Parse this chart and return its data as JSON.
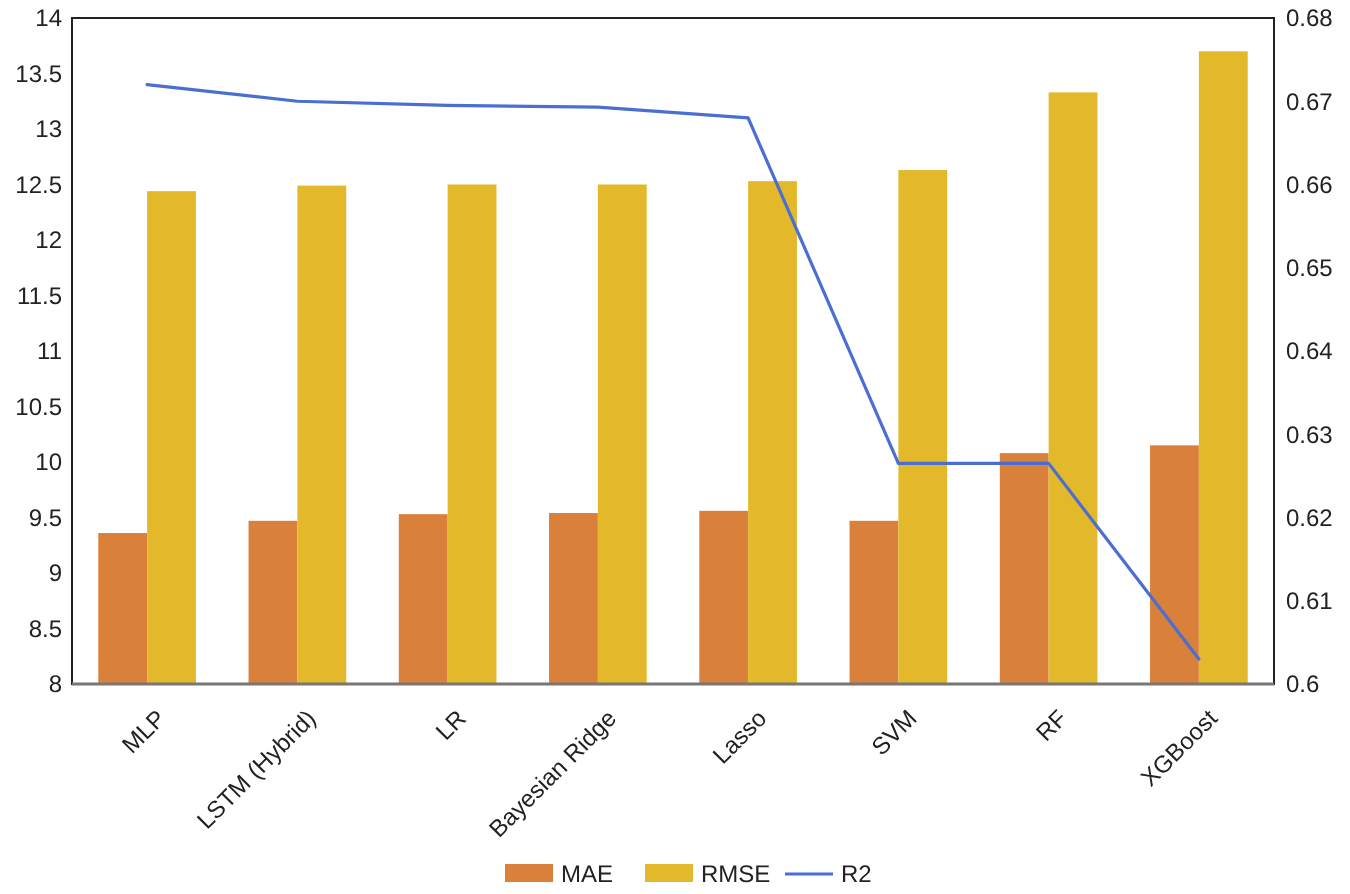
{
  "chart_data": {
    "type": "bar",
    "categories": [
      "MLP",
      "LSTM (Hybrid)",
      "LR",
      "Bayesian Ridge",
      "Lasso",
      "SVM",
      "RF",
      "XGBoost"
    ],
    "series": [
      {
        "name": "MAE",
        "color": "#d9803a",
        "values": [
          9.36,
          9.47,
          9.53,
          9.54,
          9.56,
          9.47,
          10.08,
          10.15
        ]
      },
      {
        "name": "RMSE",
        "color": "#e3b92b",
        "values": [
          12.44,
          12.49,
          12.5,
          12.5,
          12.53,
          12.63,
          13.33,
          13.7
        ]
      },
      {
        "name": "R2",
        "type": "line",
        "axis": "y2",
        "color": "#4a6fd0",
        "values": [
          0.672,
          0.67,
          0.6695,
          0.6693,
          0.668,
          0.6265,
          0.6265,
          0.603
        ]
      }
    ],
    "ylim": [
      8,
      14
    ],
    "yticks": [
      8,
      8.5,
      9,
      9.5,
      10,
      10.5,
      11,
      11.5,
      12,
      12.5,
      13,
      13.5,
      14
    ],
    "y2lim": [
      0.6,
      0.68
    ],
    "y2ticks": [
      0.6,
      0.61,
      0.62,
      0.63,
      0.64,
      0.65,
      0.66,
      0.67,
      0.68
    ],
    "legend": "bottom",
    "grid": false,
    "marker": "none",
    "line_style": "solid"
  }
}
